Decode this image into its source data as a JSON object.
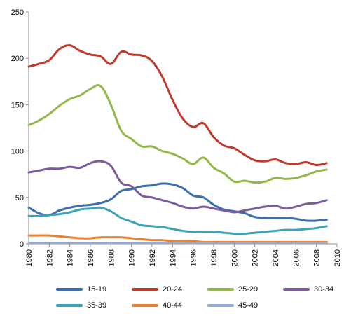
{
  "chart_data": {
    "type": "line",
    "title": "",
    "xlabel": "",
    "ylabel": "",
    "xlim": [
      1980,
      2010
    ],
    "ylim": [
      0,
      250
    ],
    "x_ticks": [
      "1980",
      "1982",
      "1984",
      "1986",
      "1988",
      "1990",
      "1992",
      "1994",
      "1996",
      "1998",
      "2000",
      "2002",
      "2004",
      "2006",
      "2008",
      "2010"
    ],
    "y_ticks": [
      "0",
      "50",
      "100",
      "150",
      "200",
      "250"
    ],
    "grid": false,
    "legend_position": "bottom",
    "x": [
      1980,
      1981,
      1982,
      1983,
      1984,
      1985,
      1986,
      1987,
      1988,
      1989,
      1990,
      1991,
      1992,
      1993,
      1994,
      1995,
      1996,
      1997,
      1998,
      1999,
      2000,
      2001,
      2002,
      2003,
      2004,
      2005,
      2006,
      2007,
      2008,
      2009
    ],
    "series": [
      {
        "name": "15-19",
        "color": "#3a6fb0",
        "values": [
          39,
          33,
          31,
          36,
          39,
          41,
          42,
          44,
          48,
          57,
          59,
          62,
          63,
          65,
          64,
          60,
          52,
          50,
          42,
          37,
          35,
          33,
          29,
          28,
          28,
          28,
          27,
          25,
          25,
          26
        ]
      },
      {
        "name": "20-24",
        "color": "#c0392b",
        "values": [
          191,
          194,
          198,
          210,
          214,
          208,
          204,
          202,
          194,
          207,
          204,
          203,
          197,
          180,
          155,
          135,
          126,
          130,
          115,
          106,
          103,
          96,
          90,
          89,
          91,
          87,
          86,
          88,
          85,
          87
        ]
      },
      {
        "name": "25-29",
        "color": "#93b84a",
        "values": [
          128,
          133,
          140,
          149,
          156,
          160,
          167,
          170,
          150,
          122,
          113,
          105,
          105,
          100,
          97,
          92,
          86,
          93,
          82,
          76,
          67,
          68,
          66,
          67,
          71,
          70,
          71,
          74,
          78,
          80
        ]
      },
      {
        "name": "30-34",
        "color": "#7b5a9e",
        "values": [
          77,
          79,
          81,
          81,
          83,
          82,
          87,
          89,
          84,
          66,
          62,
          52,
          50,
          47,
          44,
          40,
          38,
          40,
          38,
          36,
          34,
          36,
          38,
          40,
          41,
          38,
          40,
          43,
          44,
          47
        ]
      },
      {
        "name": "35-39",
        "color": "#3ca2b9",
        "values": [
          30,
          30,
          31,
          32,
          34,
          37,
          38,
          39,
          35,
          28,
          24,
          20,
          19,
          18,
          16,
          14,
          13,
          13,
          13,
          12,
          11,
          11,
          12,
          13,
          14,
          15,
          15,
          16,
          17,
          19
        ]
      },
      {
        "name": "40-44",
        "color": "#e8822e",
        "values": [
          9,
          9,
          9,
          8,
          7,
          6,
          6,
          7,
          7,
          7,
          6,
          5,
          4,
          4,
          3,
          3,
          3,
          2,
          2,
          2,
          2,
          2,
          2,
          2,
          2,
          2,
          2,
          2,
          2,
          2
        ]
      },
      {
        "name": "45-49",
        "color": "#93abd6",
        "values": [
          1,
          1,
          1,
          1,
          1,
          1,
          1,
          1,
          1,
          1,
          1,
          1,
          1,
          1,
          1,
          1,
          1,
          1,
          1,
          1,
          1,
          1,
          1,
          1,
          1,
          1,
          1,
          1,
          1,
          1
        ]
      }
    ]
  }
}
